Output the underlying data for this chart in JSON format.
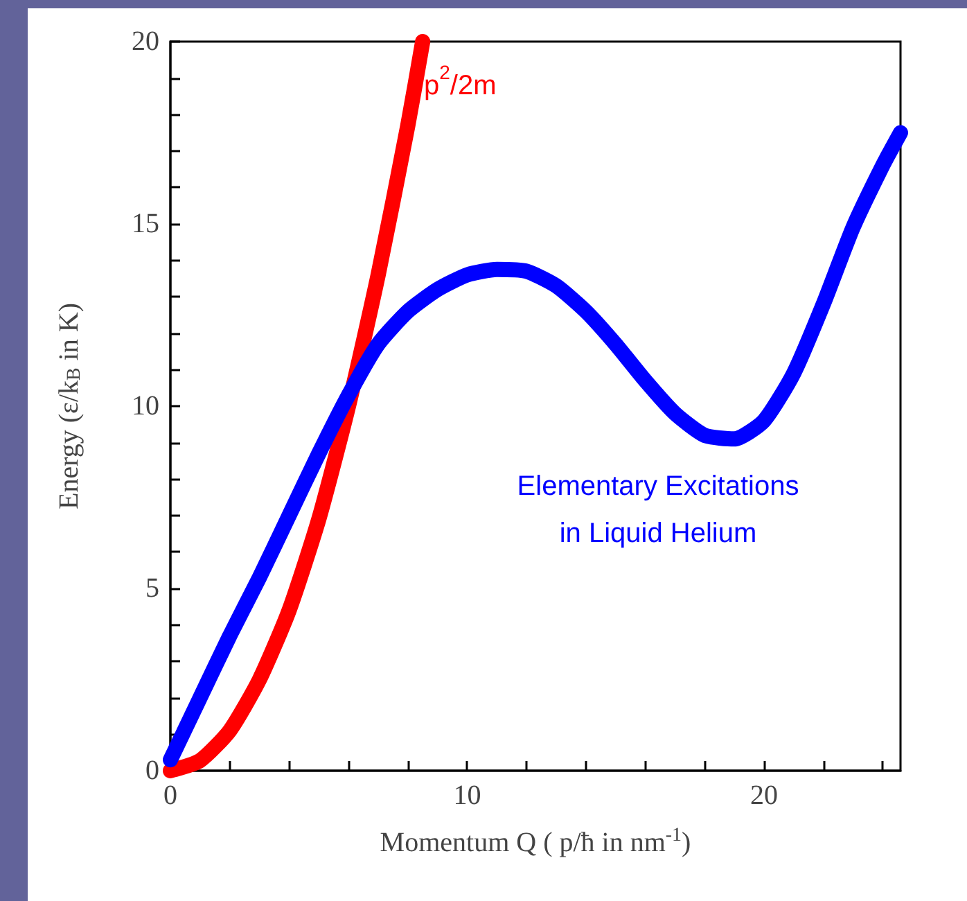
{
  "chart_data": {
    "type": "line",
    "xlabel": "Momentum Q ( p/ħ in nm$^{-1}$)",
    "ylabel": "Energy (ε/k$_{B}$ in K)",
    "xlim": [
      0,
      24.6
    ],
    "xticks": [
      0,
      {
        "value": 2,
        "label": null
      },
      {
        "value": 4,
        "label": null
      },
      {
        "value": 6,
        "label": null
      },
      {
        "value": 8,
        "label": null
      },
      10,
      {
        "value": 12,
        "label": null
      },
      {
        "value": 14,
        "label": null
      },
      {
        "value": 16,
        "label": null
      },
      {
        "value": 18,
        "label": null
      },
      20,
      {
        "value": 22,
        "label": null
      },
      {
        "value": 24,
        "label": null
      }
    ],
    "ylim": [
      0,
      20
    ],
    "yticks": [
      0,
      {
        "value": 1,
        "label": null
      },
      {
        "value": 2,
        "label": null
      },
      {
        "value": 3,
        "label": null
      },
      {
        "value": 4,
        "label": null
      },
      5,
      {
        "value": 6,
        "label": null
      },
      {
        "value": 7,
        "label": null
      },
      {
        "value": 8,
        "label": null
      },
      {
        "value": 9,
        "label": null
      },
      10,
      {
        "value": 11,
        "label": null
      },
      {
        "value": 12,
        "label": null
      },
      {
        "value": 13,
        "label": null
      },
      {
        "value": 14,
        "label": null
      },
      15,
      {
        "value": 16,
        "label": null
      },
      {
        "value": 17,
        "label": null
      },
      {
        "value": 18,
        "label": null
      },
      {
        "value": 19,
        "label": null
      },
      20
    ],
    "grid": false,
    "marker": "none",
    "line_style": "solid",
    "series": [
      {
        "color": "#ff0000",
        "x": [
          0,
          1,
          2,
          3,
          4,
          5,
          6,
          7,
          8,
          8.5
        ],
        "values": [
          0,
          0.28,
          1.1,
          2.5,
          4.4,
          6.9,
          10,
          13.6,
          17.7,
          20
        ]
      },
      {
        "color": "#0000ff",
        "x": [
          0,
          1,
          2,
          3,
          4,
          5,
          6,
          7,
          8,
          9,
          10,
          11,
          12,
          13,
          14,
          15,
          16,
          17,
          18,
          19,
          20,
          21,
          22,
          23,
          24,
          24.6
        ],
        "values": [
          0.3,
          2,
          3.7,
          5.3,
          7,
          8.7,
          10.3,
          11.7,
          12.6,
          13.2,
          13.6,
          13.75,
          13.7,
          13.3,
          12.6,
          11.7,
          10.7,
          9.8,
          9.2,
          9.1,
          9.6,
          10.9,
          12.8,
          14.9,
          16.6,
          17.5
        ]
      }
    ],
    "annotations": [
      "p$^{2}$/2m",
      "Elementary Excitations\nin Liquid Helium"
    ]
  }
}
